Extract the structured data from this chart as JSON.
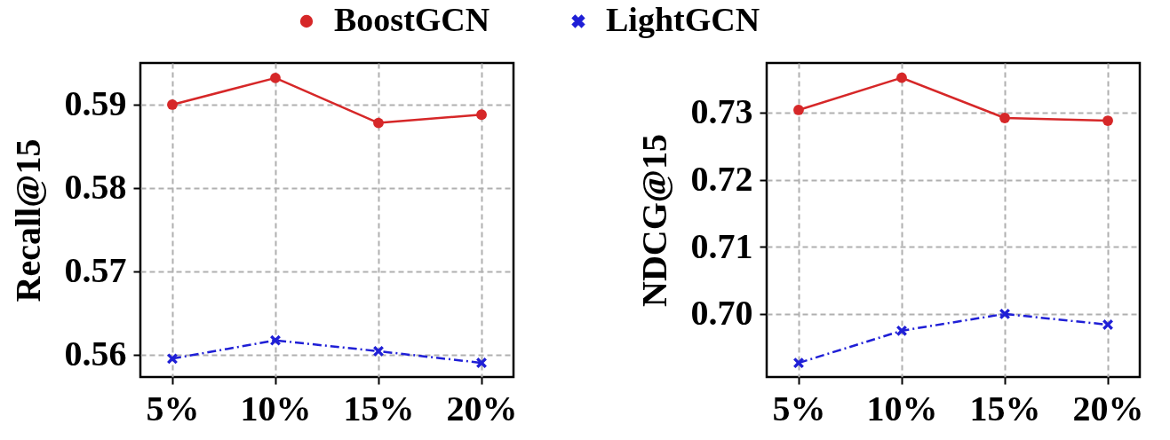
{
  "chart_data": [
    {
      "type": "line",
      "ylabel": "Recall@15",
      "categories": [
        "5%",
        "10%",
        "15%",
        "20%"
      ],
      "ylim": [
        0.5573,
        0.595
      ],
      "yticks": [
        0.56,
        0.57,
        0.58,
        0.59
      ],
      "grid": true,
      "legend": "top",
      "series": [
        {
          "name": "BoostGCN",
          "color": "#d62728",
          "marker": "circle",
          "line_style": "solid",
          "values": [
            0.59,
            0.5932,
            0.5878,
            0.5888
          ]
        },
        {
          "name": "LightGCN",
          "color": "#1f1fd6",
          "marker": "cross",
          "line_style": "dashdot",
          "values": [
            0.5595,
            0.5617,
            0.5604,
            0.559
          ]
        }
      ]
    },
    {
      "type": "line",
      "ylabel": "NDCG@15",
      "categories": [
        "5%",
        "10%",
        "15%",
        "20%"
      ],
      "ylim": [
        0.6906,
        0.7374
      ],
      "yticks": [
        {
          "value": 0.7,
          "label": "0.70"
        },
        0.71,
        0.72,
        0.73
      ],
      "grid": true,
      "legend": "top",
      "series": [
        {
          "name": "BoostGCN",
          "color": "#d62728",
          "marker": "circle",
          "line_style": "solid",
          "values": [
            0.7304,
            0.7352,
            0.7292,
            0.7288
          ]
        },
        {
          "name": "LightGCN",
          "color": "#1f1fd6",
          "marker": "cross",
          "line_style": "dashdot",
          "values": [
            0.6927,
            0.6975,
            0.7,
            0.6984
          ]
        }
      ]
    }
  ]
}
